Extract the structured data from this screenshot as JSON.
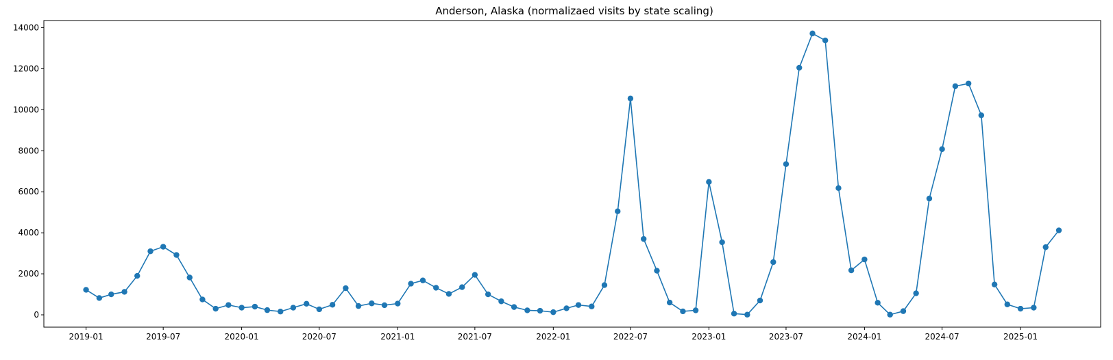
{
  "chart_data": {
    "type": "line",
    "title": "Anderson, Alaska (normalizaed visits by state scaling)",
    "xlabel": "",
    "ylabel": "",
    "ylim": [
      -600,
      14350
    ],
    "xlim": [
      "2018-09-24",
      "2025-07-08"
    ],
    "grid": false,
    "marker": "circle",
    "line_color": "#1f77b4",
    "x_ticks": [
      "2019-01",
      "2019-07",
      "2020-01",
      "2020-07",
      "2021-01",
      "2021-07",
      "2022-01",
      "2022-07",
      "2023-01",
      "2023-07",
      "2024-01",
      "2024-07",
      "2025-01"
    ],
    "y_ticks": [
      0,
      2000,
      4000,
      6000,
      8000,
      10000,
      12000,
      14000
    ],
    "series": [
      {
        "x": [
          "2019-01",
          "2019-02",
          "2019-03",
          "2019-04",
          "2019-05",
          "2019-06",
          "2019-07",
          "2019-08",
          "2019-09",
          "2019-10",
          "2019-11",
          "2019-12",
          "2020-01",
          "2020-02",
          "2020-03",
          "2020-04",
          "2020-05",
          "2020-06",
          "2020-07",
          "2020-08",
          "2020-09",
          "2020-10",
          "2020-11",
          "2020-12",
          "2021-01",
          "2021-02",
          "2021-03",
          "2021-04",
          "2021-05",
          "2021-06",
          "2021-07",
          "2021-08",
          "2021-09",
          "2021-10",
          "2021-11",
          "2021-12",
          "2022-01",
          "2022-02",
          "2022-03",
          "2022-04",
          "2022-05",
          "2022-06",
          "2022-07",
          "2022-08",
          "2022-09",
          "2022-10",
          "2022-11",
          "2022-12",
          "2023-01",
          "2023-02",
          "2023-03",
          "2023-04",
          "2023-05",
          "2023-06",
          "2023-07",
          "2023-08",
          "2023-09",
          "2023-10",
          "2023-11",
          "2023-12",
          "2024-01",
          "2024-02",
          "2024-03",
          "2024-04",
          "2024-05",
          "2024-06",
          "2024-07",
          "2024-08",
          "2024-09",
          "2024-10",
          "2024-11",
          "2024-12",
          "2025-01",
          "2025-02",
          "2025-03",
          "2025-04"
        ],
        "values": [
          1220,
          820,
          1000,
          1120,
          1900,
          3100,
          3320,
          2920,
          1820,
          750,
          300,
          480,
          350,
          400,
          230,
          160,
          350,
          540,
          270,
          490,
          1300,
          430,
          560,
          470,
          550,
          1520,
          1680,
          1320,
          1020,
          1350,
          1950,
          1000,
          660,
          380,
          220,
          200,
          130,
          320,
          480,
          410,
          1450,
          5050,
          10550,
          3700,
          2150,
          600,
          170,
          220,
          6480,
          3540,
          60,
          10,
          700,
          2570,
          7350,
          12050,
          13720,
          13380,
          6180,
          2170,
          2700,
          590,
          10,
          180,
          1050,
          5670,
          8080,
          11150,
          11280,
          9730,
          1480,
          510,
          300,
          350,
          3300,
          4120
        ]
      }
    ]
  }
}
